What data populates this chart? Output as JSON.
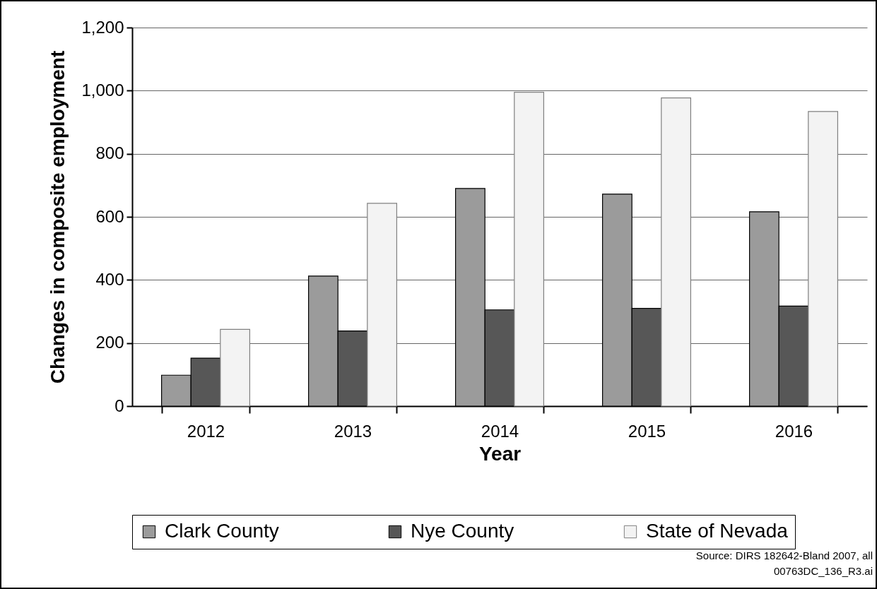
{
  "chart_data": {
    "type": "bar",
    "xlabel": "Year",
    "ylabel": "Changes in composite employment",
    "categories": [
      "2012",
      "2013",
      "2014",
      "2015",
      "2016"
    ],
    "series": [
      {
        "name": "Clark County",
        "color": "#9b9b9b",
        "values": [
          98,
          412,
          690,
          672,
          616
        ]
      },
      {
        "name": "Nye County",
        "color": "#575757",
        "values": [
          152,
          238,
          305,
          310,
          317
        ]
      },
      {
        "name": "State of Nevada",
        "color": "#f3f3f3",
        "values": [
          243,
          643,
          995,
          977,
          934
        ]
      }
    ],
    "ylim": [
      0,
      1200
    ],
    "yticks": [
      {
        "value": 0,
        "label": "0"
      },
      {
        "value": 200,
        "label": "200"
      },
      {
        "value": 400,
        "label": "400"
      },
      {
        "value": 600,
        "label": "600"
      },
      {
        "value": 800,
        "label": "800"
      },
      {
        "value": 1000,
        "label": "1,000"
      },
      {
        "value": 1200,
        "label": "1,200"
      }
    ],
    "grid": "y",
    "legend": "bottom",
    "annotations": [
      "Source:  DIRS 182642-Bland 2007, all",
      "00763DC_136_R3.ai"
    ]
  }
}
